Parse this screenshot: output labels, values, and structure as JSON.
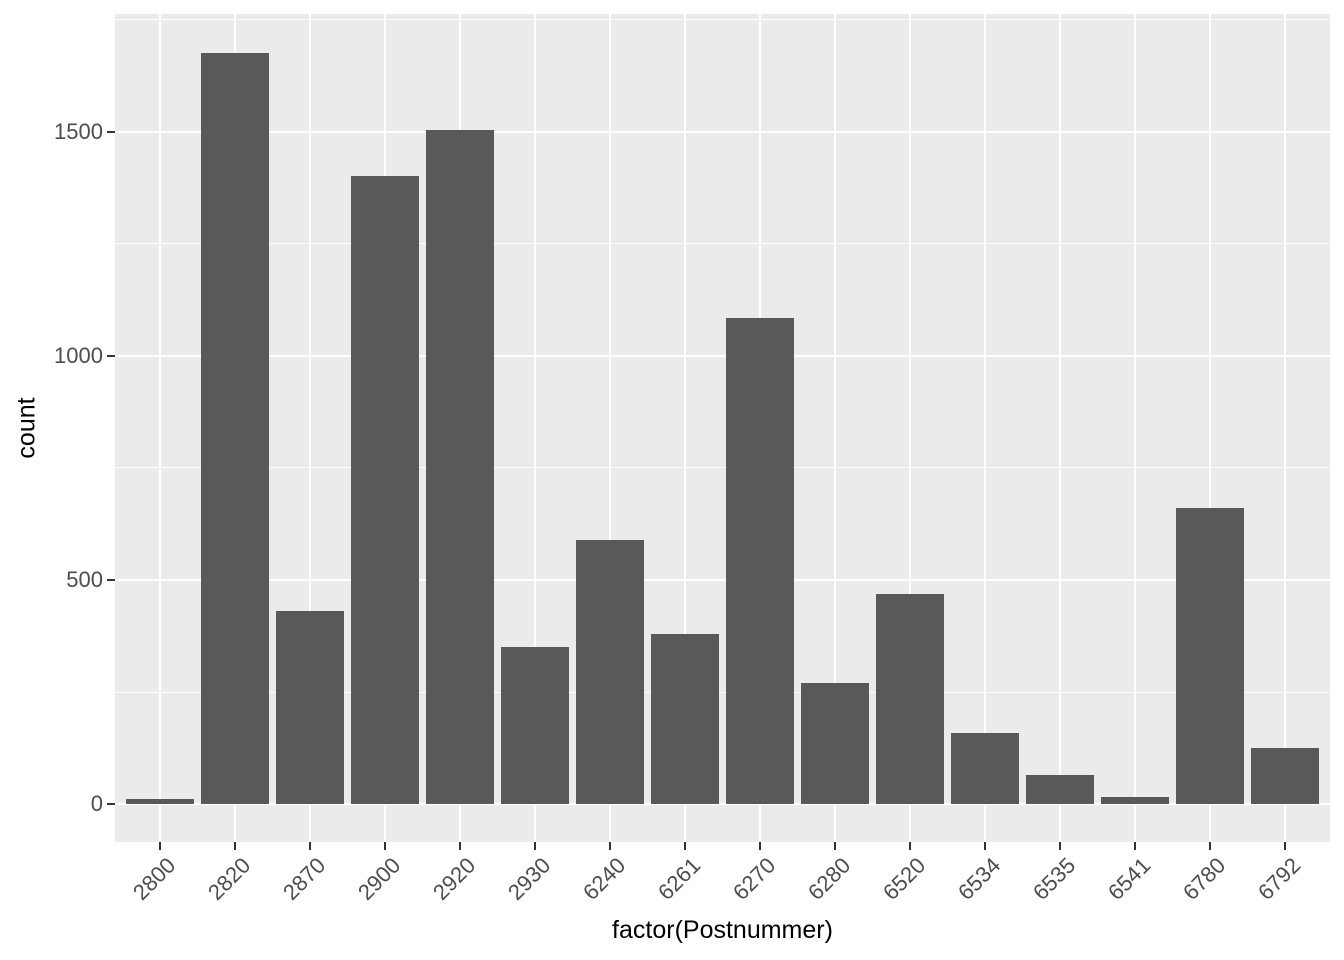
{
  "chart_data": {
    "type": "bar",
    "title": "",
    "xlabel": "factor(Postnummer)",
    "ylabel": "count",
    "categories": [
      "2800",
      "2820",
      "2870",
      "2900",
      "2920",
      "2930",
      "6240",
      "6261",
      "6270",
      "6280",
      "6520",
      "6534",
      "6535",
      "6541",
      "6780",
      "6792"
    ],
    "values": [
      12,
      1675,
      430,
      1400,
      1503,
      350,
      590,
      380,
      1085,
      270,
      470,
      160,
      65,
      17,
      660,
      125
    ],
    "yticks": [
      0,
      500,
      1000,
      1500
    ],
    "yticks_minor": [
      250,
      750,
      1250,
      1750
    ],
    "ylim": [
      -84,
      1762
    ],
    "grid": true,
    "legend_position": "none",
    "bar_color": "#595959",
    "panel_bg": "#EBEBEB",
    "grid_color": "#FFFFFF",
    "tick_text_color": "#4D4D4D",
    "axis_title_color": "#000000"
  }
}
